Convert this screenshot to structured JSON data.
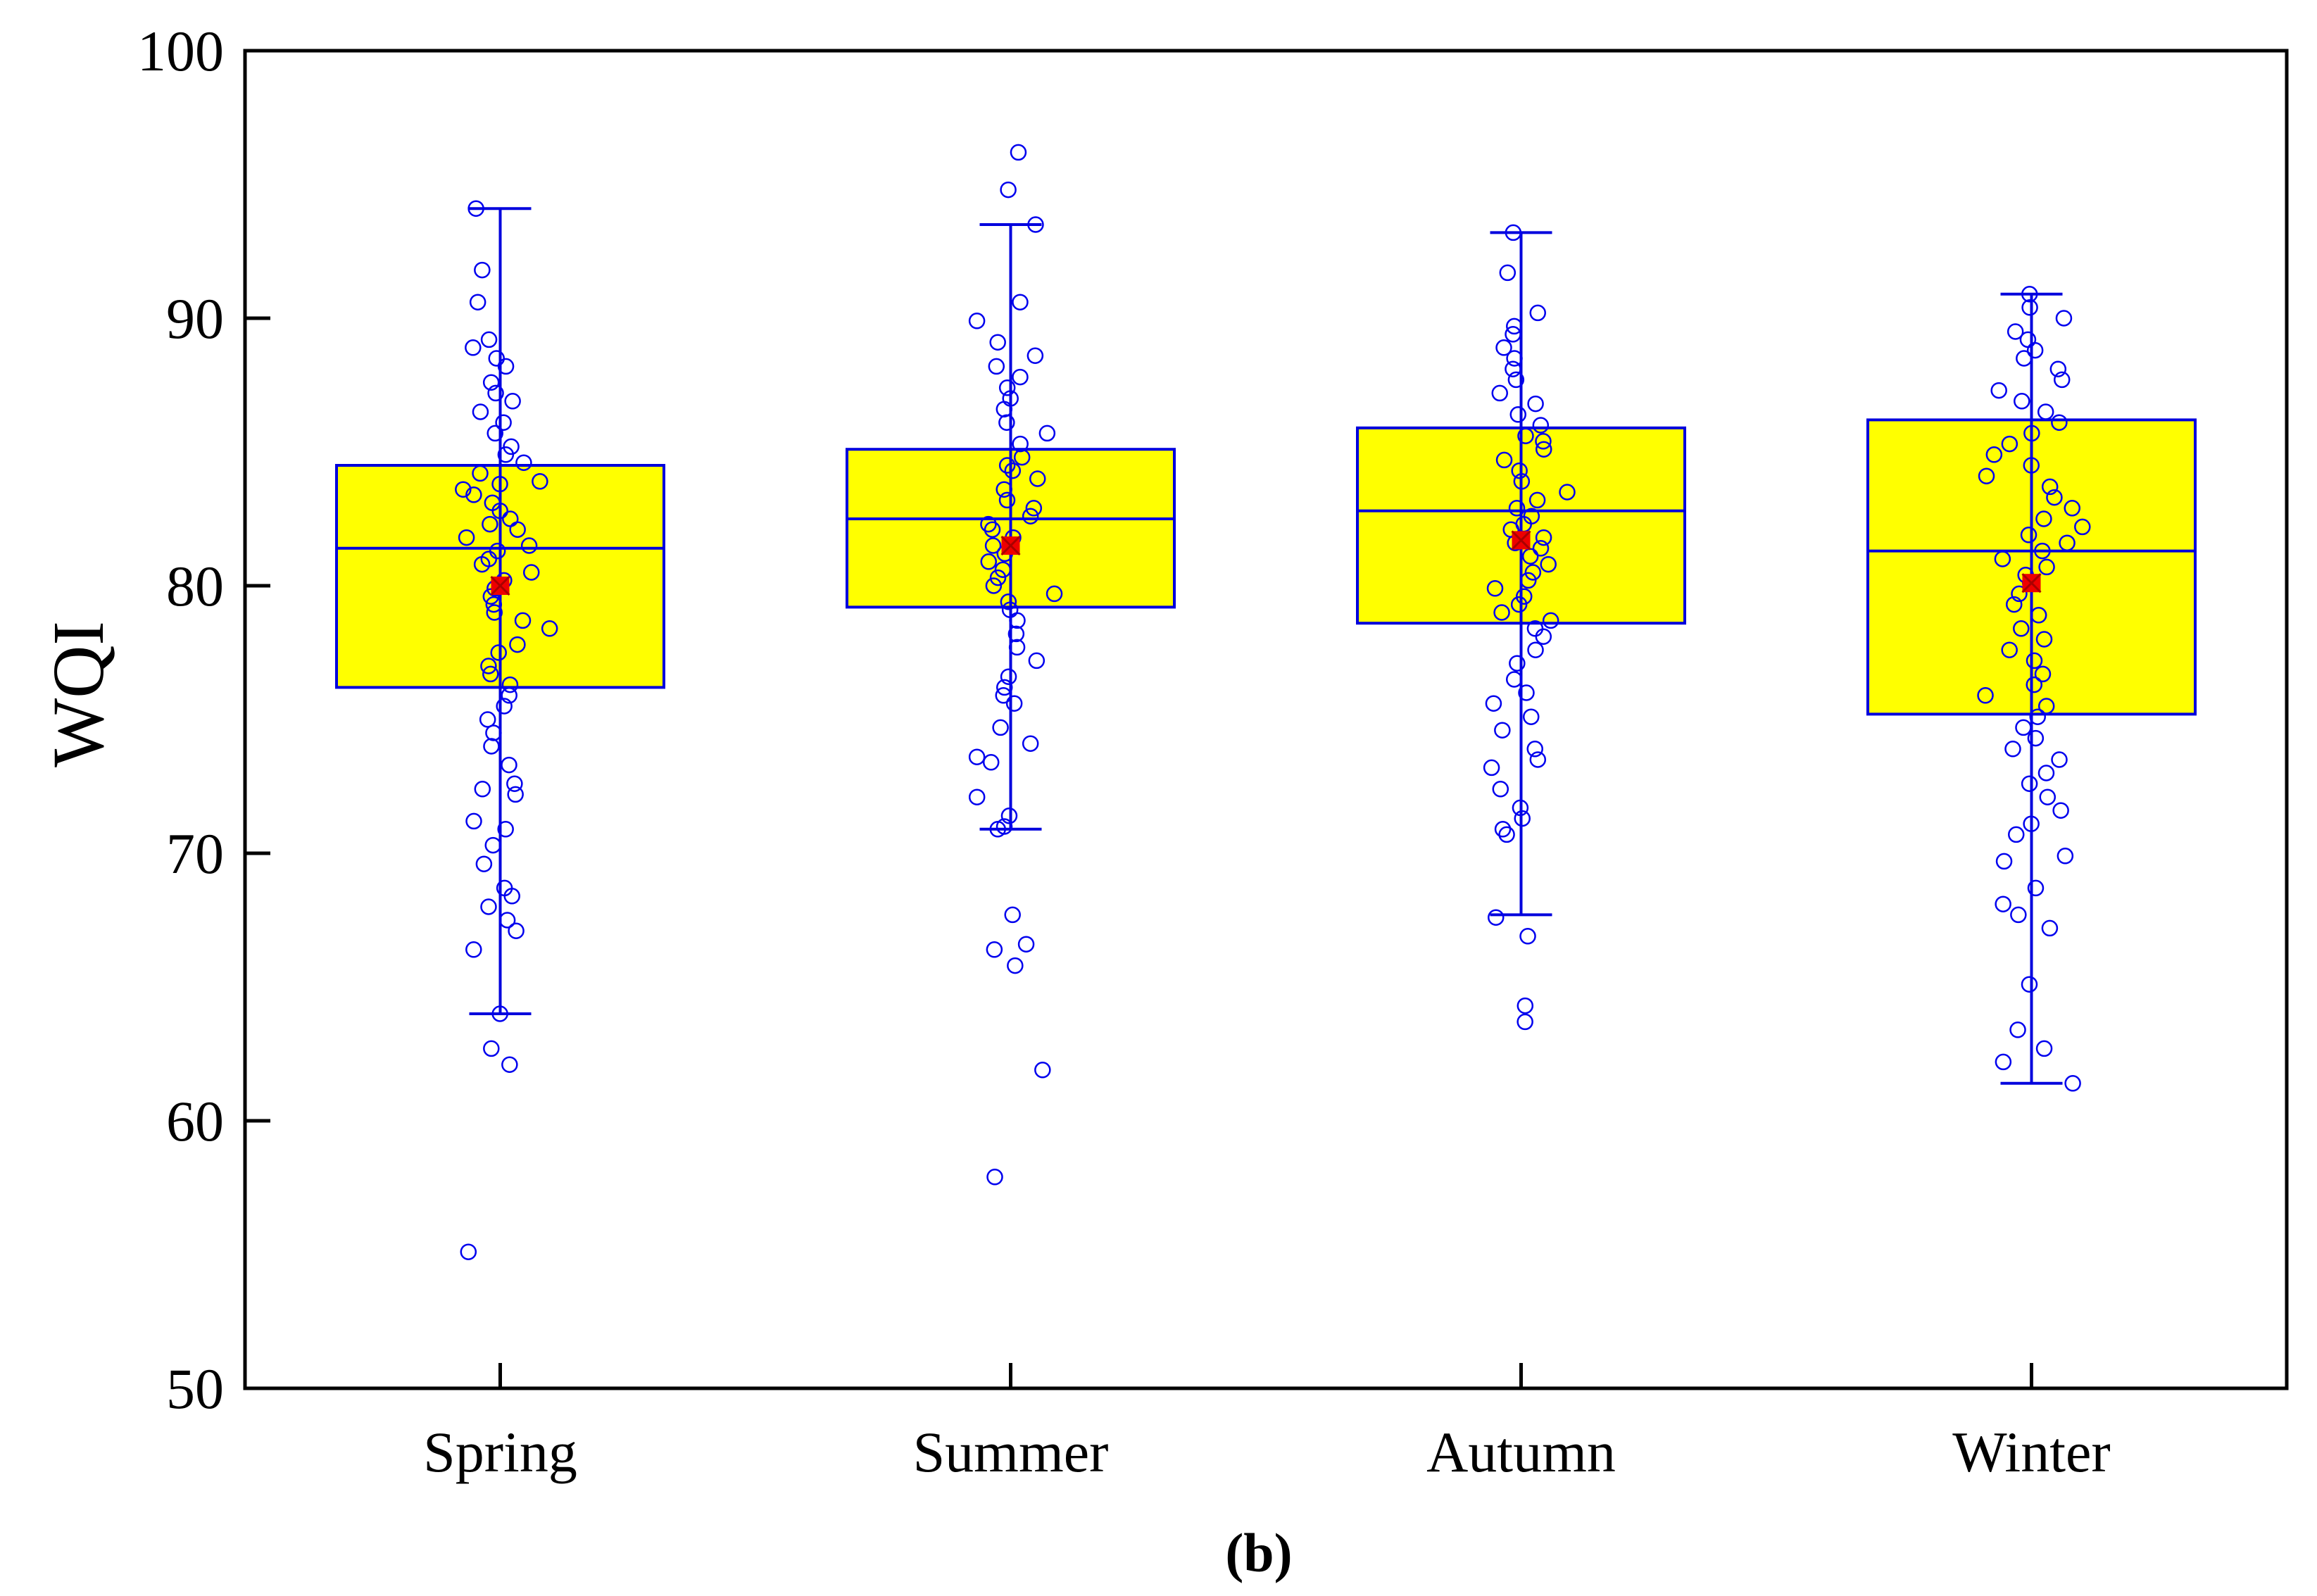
{
  "chart_data": {
    "type": "box",
    "title": "",
    "caption": "(b)",
    "xlabel": "",
    "ylabel": "WQI",
    "ylim": [
      50,
      100
    ],
    "yticks": [
      50,
      60,
      70,
      80,
      90,
      100
    ],
    "categories": [
      "Spring",
      "Summer",
      "Autumn",
      "Winter"
    ],
    "boxes": [
      {
        "name": "Spring",
        "whisker_low": 64.0,
        "q1": 76.2,
        "median": 81.4,
        "q3": 84.5,
        "whisker_high": 94.1,
        "mean": 80.0
      },
      {
        "name": "Summer",
        "whisker_low": 70.9,
        "q1": 79.2,
        "median": 82.5,
        "q3": 85.1,
        "whisker_high": 93.5,
        "mean": 81.5
      },
      {
        "name": "Autumn",
        "whisker_low": 67.7,
        "q1": 78.6,
        "median": 82.8,
        "q3": 85.9,
        "whisker_high": 93.2,
        "mean": 81.7
      },
      {
        "name": "Winter",
        "whisker_low": 61.4,
        "q1": 75.2,
        "median": 81.3,
        "q3": 86.2,
        "whisker_high": 90.9,
        "mean": 80.1
      }
    ],
    "points": [
      [
        94.1,
        91.8,
        90.6,
        89.2,
        88.9,
        88.5,
        88.2,
        87.6,
        87.2,
        86.9,
        86.5,
        86.1,
        85.7,
        85.2,
        84.9,
        84.6,
        84.2,
        83.9,
        83.8,
        83.6,
        83.4,
        83.1,
        82.8,
        82.5,
        82.3,
        82.1,
        81.8,
        81.5,
        81.3,
        81.0,
        80.8,
        80.5,
        80.2,
        79.9,
        79.6,
        79.3,
        79.0,
        78.7,
        78.4,
        77.8,
        77.5,
        77.0,
        76.7,
        76.3,
        75.9,
        75.5,
        75.0,
        74.5,
        74.0,
        73.3,
        72.6,
        72.4,
        72.2,
        71.2,
        70.9,
        70.3,
        69.6,
        68.7,
        68.4,
        68.0,
        67.5,
        67.1,
        66.4,
        64.0,
        62.7,
        62.1,
        55.1
      ],
      [
        96.2,
        94.8,
        93.5,
        90.6,
        89.9,
        89.1,
        88.6,
        88.2,
        87.8,
        87.4,
        87.0,
        86.6,
        86.1,
        85.7,
        85.3,
        84.8,
        84.5,
        84.3,
        84.0,
        83.6,
        83.2,
        82.9,
        82.6,
        82.3,
        82.1,
        81.8,
        81.5,
        81.2,
        80.9,
        80.6,
        80.3,
        80.0,
        79.7,
        79.4,
        79.1,
        78.7,
        78.2,
        77.7,
        77.2,
        76.6,
        76.2,
        75.9,
        75.6,
        74.7,
        74.1,
        73.6,
        73.4,
        72.1,
        71.4,
        71.0,
        70.9,
        67.7,
        66.6,
        66.4,
        65.8,
        61.9,
        57.9
      ],
      [
        93.2,
        91.7,
        90.2,
        89.7,
        89.4,
        88.9,
        88.5,
        88.1,
        87.7,
        87.2,
        86.8,
        86.4,
        86.0,
        85.6,
        85.4,
        85.1,
        84.7,
        84.3,
        83.9,
        83.5,
        83.2,
        82.9,
        82.6,
        82.3,
        82.1,
        81.8,
        81.6,
        81.4,
        81.1,
        80.8,
        80.5,
        80.2,
        79.9,
        79.6,
        79.3,
        79.0,
        78.7,
        78.4,
        78.1,
        77.6,
        77.1,
        76.5,
        76.0,
        75.6,
        75.1,
        74.6,
        73.9,
        73.5,
        73.2,
        72.4,
        71.7,
        71.3,
        70.9,
        70.7,
        67.6,
        66.9,
        64.3,
        63.7
      ],
      [
        90.9,
        90.4,
        90.0,
        89.5,
        89.2,
        88.8,
        88.5,
        88.1,
        87.7,
        87.3,
        86.9,
        86.5,
        86.1,
        85.7,
        85.3,
        84.9,
        84.5,
        84.1,
        83.7,
        83.3,
        82.9,
        82.5,
        82.2,
        81.9,
        81.6,
        81.3,
        81.0,
        80.7,
        80.4,
        80.1,
        79.7,
        79.3,
        78.9,
        78.4,
        78.0,
        77.6,
        77.2,
        76.7,
        76.3,
        75.9,
        75.5,
        75.1,
        74.7,
        74.3,
        73.9,
        73.5,
        73.0,
        72.6,
        72.1,
        71.6,
        71.1,
        70.7,
        69.9,
        69.7,
        68.7,
        68.1,
        67.7,
        67.2,
        65.1,
        63.4,
        62.7,
        62.2,
        61.4
      ]
    ],
    "colors": {
      "box_fill": "#ffff00",
      "box_stroke": "#0000dd",
      "point_stroke": "#0000ee",
      "mean_marker": "#ee0000",
      "axis": "#000000"
    }
  }
}
